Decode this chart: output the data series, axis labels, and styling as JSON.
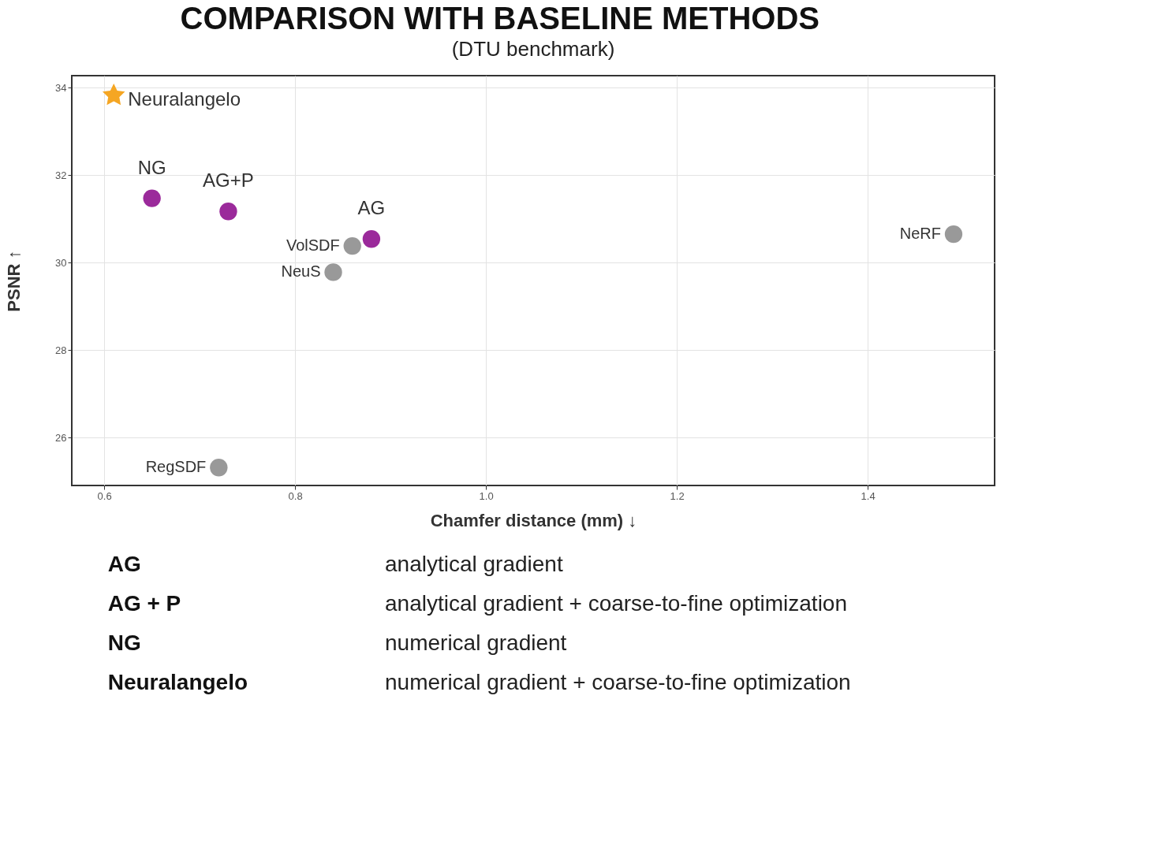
{
  "chart_data": {
    "type": "scatter",
    "title": "COMPARISON WITH BASELINE METHODS",
    "subtitle": "(DTU benchmark)",
    "xlabel": "Chamfer distance (mm) ↓",
    "ylabel": "PSNR ↑",
    "xlim": [
      0.566,
      1.533
    ],
    "ylim": [
      24.91,
      34.27
    ],
    "xticks": [
      0.6,
      0.8,
      {
        "value": 1.0,
        "label": "1.0"
      },
      1.2,
      1.4
    ],
    "yticks": [
      26,
      28,
      30,
      32,
      34
    ],
    "grid": true,
    "legend": false,
    "marker": "circle",
    "series": [
      {
        "name": "Neuralangelo",
        "color": "#f5a623",
        "marker": "star",
        "x": [
          0.61
        ],
        "values": [
          33.82
        ]
      },
      {
        "name": "NG",
        "color": "#9b2a9b",
        "x": [
          0.65
        ],
        "values": [
          31.47
        ]
      },
      {
        "name": "AG+P",
        "color": "#9b2a9b",
        "x": [
          0.73
        ],
        "values": [
          31.17
        ]
      },
      {
        "name": "AG",
        "color": "#9b2a9b",
        "x": [
          0.88
        ],
        "values": [
          30.54
        ]
      },
      {
        "name": "VolSDF",
        "color": "#999999",
        "x": [
          0.86
        ],
        "values": [
          30.38
        ]
      },
      {
        "name": "NeuS",
        "color": "#999999",
        "x": [
          0.84
        ],
        "values": [
          29.78
        ]
      },
      {
        "name": "NeRF",
        "color": "#999999",
        "x": [
          1.49
        ],
        "values": [
          30.65
        ]
      },
      {
        "name": "RegSDF",
        "color": "#999999",
        "x": [
          0.72
        ],
        "values": [
          25.32
        ]
      }
    ],
    "annotations": [
      "AG",
      "analytical gradient",
      "AG + P",
      "analytical gradient  + coarse-to-fine optimization",
      "NG",
      "numerical gradient",
      "Neuralangelo",
      "numerical gradient + coarse-to-fine optimization"
    ]
  }
}
